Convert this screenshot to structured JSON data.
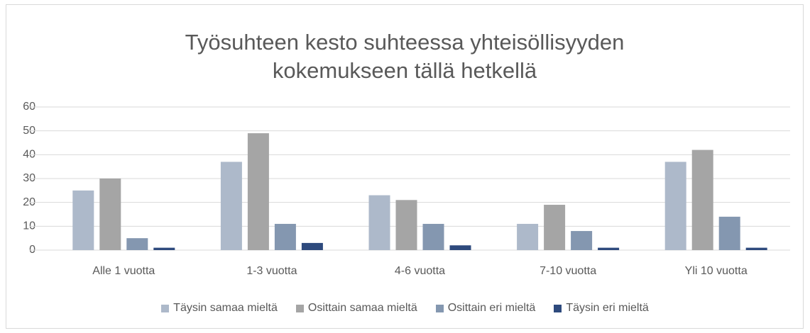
{
  "chart_data": {
    "type": "bar",
    "title": "Työsuhteen kesto suhteessa yhteisöllisyyden kokemukseen tällä hetkellä",
    "categories": [
      "Alle 1 vuotta",
      "1-3 vuotta",
      "4-6 vuotta",
      "7-10 vuotta",
      "Yli 10 vuotta"
    ],
    "series": [
      {
        "name": "Täysin samaa mieltä",
        "color": "#adb9ca",
        "values": [
          25,
          37,
          23,
          11,
          37
        ]
      },
      {
        "name": "Osittain samaa mieltä",
        "color": "#a5a5a5",
        "values": [
          30,
          49,
          21,
          19,
          42
        ]
      },
      {
        "name": "Osittain eri mieltä",
        "color": "#8497b0",
        "values": [
          5,
          11,
          11,
          8,
          14
        ]
      },
      {
        "name": "Täysin eri mieltä",
        "color": "#2e4a7d",
        "values": [
          1,
          3,
          2,
          1,
          1
        ]
      }
    ],
    "ylim": [
      0,
      60
    ],
    "yticks": [
      0,
      10,
      20,
      30,
      40,
      50,
      60
    ],
    "grid": true,
    "legend": "bottom"
  }
}
